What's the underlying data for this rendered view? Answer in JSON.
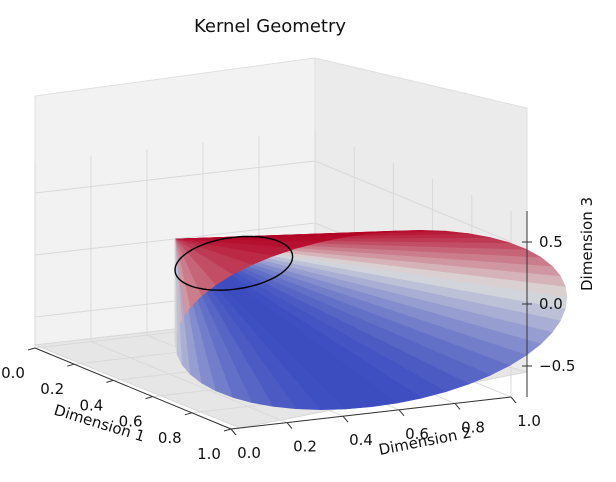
{
  "chart_data": {
    "type": "surface3d",
    "title": "Kernel Geometry",
    "x_axis": {
      "label": "Dimension 1",
      "range": [
        0.0,
        1.0
      ],
      "ticks": [
        "0.0",
        "0.2",
        "0.4",
        "0.6",
        "0.8",
        "1.0"
      ]
    },
    "y_axis": {
      "label": "Dimension 2",
      "range": [
        0.0,
        1.0
      ],
      "ticks": [
        "0.0",
        "0.2",
        "0.4",
        "0.6",
        "0.8",
        "1.0"
      ]
    },
    "z_axis": {
      "label": "Dimension 3",
      "range": [
        -0.75,
        0.75
      ],
      "ticks": [
        "−0.5",
        "0.0",
        "0.5"
      ]
    },
    "surface": {
      "shape": "cone",
      "apex": [
        0.0,
        0.5,
        0.0
      ],
      "axis_direction": "Dimension 1",
      "length": 1.0,
      "base_radius": 0.7,
      "colormap": "coolwarm",
      "colormap_low": "#3b4cc0",
      "colormap_mid": "#dddddd",
      "colormap_high": "#b40426"
    },
    "curve": {
      "shape": "circle",
      "position_along_axis": 0.3,
      "radius": 0.21,
      "color": "#000000"
    },
    "grid": true
  }
}
